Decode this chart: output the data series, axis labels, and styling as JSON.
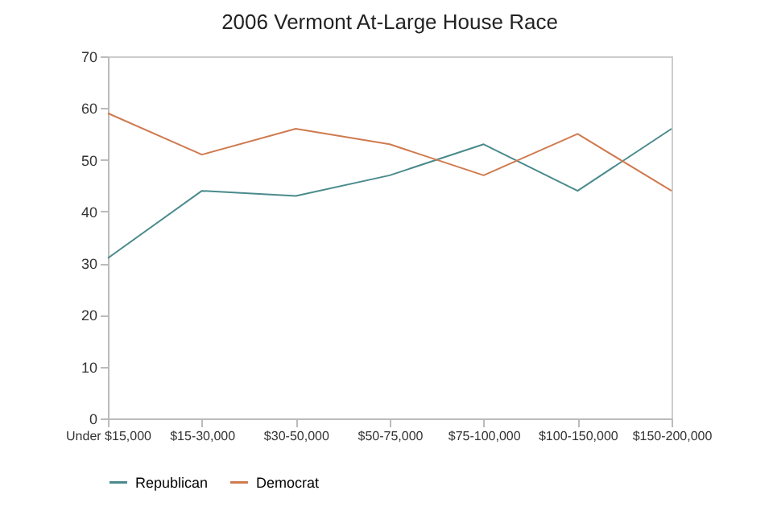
{
  "chart_data": {
    "type": "line",
    "title": "2006 Vermont At-Large House Race",
    "categories": [
      "Under $15,000",
      "$15-30,000",
      "$30-50,000",
      "$50-75,000",
      "$75-100,000",
      "$100-150,000",
      "$150-200,000"
    ],
    "series": [
      {
        "name": "Republican",
        "color": "#4a8a8c",
        "values": [
          31,
          44,
          43,
          47,
          53,
          44,
          56
        ]
      },
      {
        "name": "Democrat",
        "color": "#d07a50",
        "values": [
          59,
          51,
          56,
          53,
          47,
          55,
          44
        ]
      }
    ],
    "ylim": [
      0,
      70
    ],
    "yticks": [
      0,
      10,
      20,
      30,
      40,
      50,
      60,
      70
    ],
    "grid": false,
    "legend": "bottom"
  }
}
